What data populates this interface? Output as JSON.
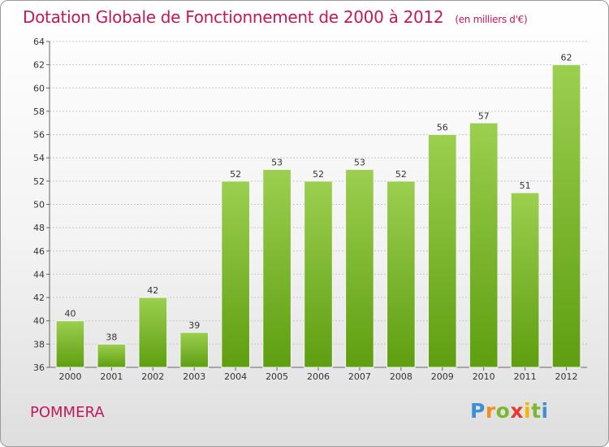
{
  "title": "Dotation Globale de Fonctionnement de 2000 à 2012",
  "subtitle": "(en milliers d'€)",
  "commune": "POMMERA",
  "logo": {
    "text": "Proxiti",
    "letter_colors": [
      "#3f8fd2",
      "#f28c1c",
      "#7cb82f",
      "#e53935",
      "#f4b400",
      "#7cb82f",
      "#3f8fd2"
    ]
  },
  "colors": {
    "title": "#c2185b",
    "bar_light": "#9ccf4f",
    "bar_dark": "#5e9e10",
    "axis": "#666666",
    "grid": "#c8c8c8"
  },
  "chart_data": {
    "type": "bar",
    "title": "Dotation Globale de Fonctionnement de 2000 à 2012",
    "subtitle": "(en milliers d'€)",
    "categories": [
      "2000",
      "2001",
      "2002",
      "2003",
      "2004",
      "2005",
      "2006",
      "2007",
      "2008",
      "2009",
      "2010",
      "2011",
      "2012"
    ],
    "values": [
      40,
      38,
      42,
      39,
      52,
      53,
      52,
      53,
      52,
      56,
      57,
      51,
      62
    ],
    "ylim": [
      36,
      64
    ],
    "yticks": [
      36,
      38,
      40,
      42,
      44,
      46,
      48,
      50,
      52,
      54,
      56,
      58,
      60,
      62,
      64
    ],
    "grid": true,
    "legend": "none"
  }
}
